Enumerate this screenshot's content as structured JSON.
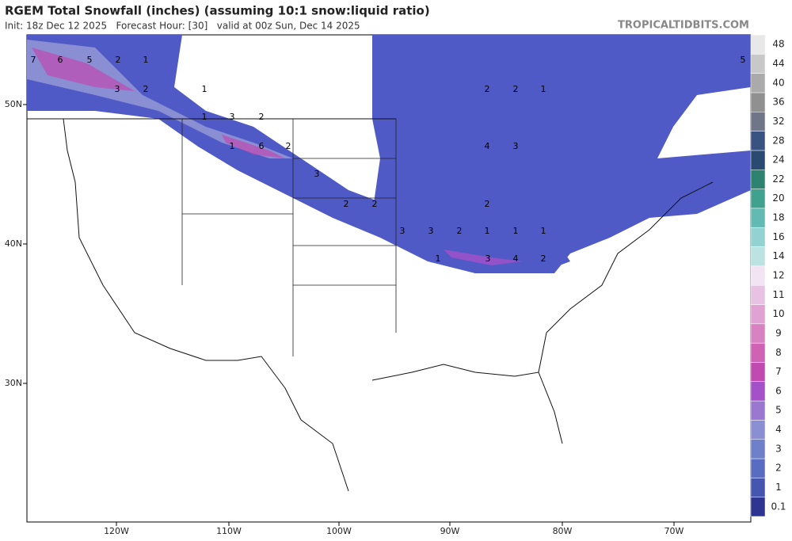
{
  "header": {
    "title": "RGEM Total Snowfall (inches) (assuming 10:1 snow:liquid ratio)",
    "subtitle": "Init: 18z Dec 12 2025   Forecast Hour: [30]   valid at 00z Sun, Dec 14 2025",
    "source": "TROPICALTIDBITS.COM"
  },
  "map": {
    "lat_labels": [
      "50N",
      "40N",
      "30N"
    ],
    "lon_labels": [
      "120W",
      "110W",
      "100W",
      "90W",
      "80W",
      "70W"
    ],
    "contour_labels": [
      "7",
      "6",
      "5",
      "2",
      "1",
      "3",
      "2",
      "1",
      "1",
      "3",
      "2",
      "1",
      "6",
      "2",
      "3",
      "2",
      "2",
      "3",
      "3",
      "2",
      "1",
      "1",
      "1",
      "1",
      "3",
      "4",
      "2",
      "2",
      "2",
      "1",
      "4",
      "3",
      "5",
      "2"
    ]
  },
  "legend": {
    "levels": [
      0.1,
      1,
      2,
      3,
      4,
      5,
      6,
      7,
      8,
      9,
      10,
      11,
      12,
      14,
      16,
      18,
      20,
      22,
      24,
      28,
      32,
      36,
      40,
      44,
      48
    ],
    "colors": [
      "#2d3590",
      "#4656b0",
      "#5a6cc0",
      "#6e80c8",
      "#8a8ed2",
      "#9a78d0",
      "#a450c8",
      "#c04ab0",
      "#d062b4",
      "#d882c2",
      "#e0a2d2",
      "#e8c2e2",
      "#f2e4f2",
      "#bce2e2",
      "#92d2d0",
      "#62bab2",
      "#40a28e",
      "#2e8270",
      "#2a4a72",
      "#3a5282",
      "#6e7688",
      "#909090",
      "#aaaaaa",
      "#c8c8c8",
      "#e8e8e8"
    ]
  }
}
